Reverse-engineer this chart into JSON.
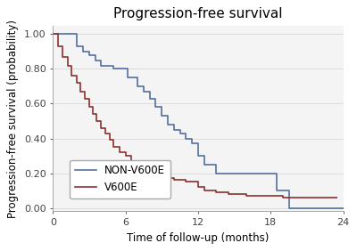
{
  "title": "Progression-free survival",
  "xlabel": "Time of follow-up (months)",
  "ylabel": "Progression-free survival (probability)",
  "xlim": [
    0,
    24
  ],
  "ylim": [
    -0.02,
    1.05
  ],
  "xticks": [
    0,
    6,
    12,
    18,
    24
  ],
  "yticks": [
    0.0,
    0.2,
    0.4,
    0.6,
    0.8,
    1.0
  ],
  "ytick_labels": [
    "0.00",
    "0.20",
    "0.40",
    "0.60",
    "0.80",
    "1.00"
  ],
  "non_v600e_color": "#5470a0",
  "v600e_color": "#8b3030",
  "background_color": "#f4f4f4",
  "plot_bg_color": "#f4f4f4",
  "non_v600e_label": "NON-V600E",
  "v600e_label": "V600E",
  "non_v600e_times": [
    0,
    2.0,
    2.0,
    2.5,
    2.5,
    3.0,
    3.0,
    3.5,
    3.5,
    4.0,
    4.0,
    5.0,
    5.0,
    6.2,
    6.2,
    7.0,
    7.0,
    7.5,
    7.5,
    8.0,
    8.0,
    8.5,
    8.5,
    9.0,
    9.0,
    9.5,
    9.5,
    10.0,
    10.0,
    10.5,
    10.5,
    11.0,
    11.0,
    11.5,
    11.5,
    12.0,
    12.0,
    12.5,
    12.5,
    13.5,
    13.5,
    18.5,
    18.5,
    19.5,
    19.5,
    24.0
  ],
  "non_v600e_surv": [
    1.0,
    1.0,
    0.93,
    0.93,
    0.9,
    0.9,
    0.88,
    0.88,
    0.85,
    0.85,
    0.82,
    0.82,
    0.8,
    0.8,
    0.75,
    0.75,
    0.7,
    0.7,
    0.67,
    0.67,
    0.63,
    0.63,
    0.58,
    0.58,
    0.53,
    0.53,
    0.48,
    0.48,
    0.45,
    0.45,
    0.43,
    0.43,
    0.4,
    0.4,
    0.37,
    0.37,
    0.3,
    0.3,
    0.25,
    0.25,
    0.2,
    0.2,
    0.1,
    0.1,
    0.0,
    0.0
  ],
  "v600e_times": [
    0,
    0.4,
    0.4,
    0.8,
    0.8,
    1.2,
    1.2,
    1.5,
    1.5,
    2.0,
    2.0,
    2.3,
    2.3,
    2.6,
    2.6,
    3.0,
    3.0,
    3.3,
    3.3,
    3.6,
    3.6,
    4.0,
    4.0,
    4.3,
    4.3,
    4.7,
    4.7,
    5.0,
    5.0,
    5.5,
    5.5,
    6.0,
    6.0,
    6.5,
    6.5,
    7.0,
    7.0,
    7.5,
    7.5,
    8.0,
    8.0,
    8.5,
    8.5,
    9.0,
    9.0,
    9.5,
    9.5,
    10.0,
    10.0,
    11.0,
    11.0,
    12.0,
    12.0,
    12.5,
    12.5,
    13.5,
    13.5,
    14.5,
    14.5,
    16.0,
    16.0,
    19.0,
    19.0,
    23.5,
    23.5
  ],
  "v600e_surv": [
    1.0,
    1.0,
    0.93,
    0.93,
    0.87,
    0.87,
    0.82,
    0.82,
    0.76,
    0.76,
    0.72,
    0.72,
    0.67,
    0.67,
    0.63,
    0.63,
    0.58,
    0.58,
    0.54,
    0.54,
    0.5,
    0.5,
    0.46,
    0.46,
    0.43,
    0.43,
    0.39,
    0.39,
    0.35,
    0.35,
    0.32,
    0.32,
    0.3,
    0.3,
    0.27,
    0.27,
    0.24,
    0.24,
    0.22,
    0.22,
    0.2,
    0.2,
    0.19,
    0.19,
    0.18,
    0.18,
    0.17,
    0.17,
    0.16,
    0.16,
    0.15,
    0.15,
    0.12,
    0.12,
    0.1,
    0.1,
    0.09,
    0.09,
    0.08,
    0.08,
    0.07,
    0.07,
    0.06,
    0.06,
    0.06
  ],
  "linewidth": 1.2,
  "title_fontsize": 11,
  "label_fontsize": 8.5,
  "tick_fontsize": 8
}
